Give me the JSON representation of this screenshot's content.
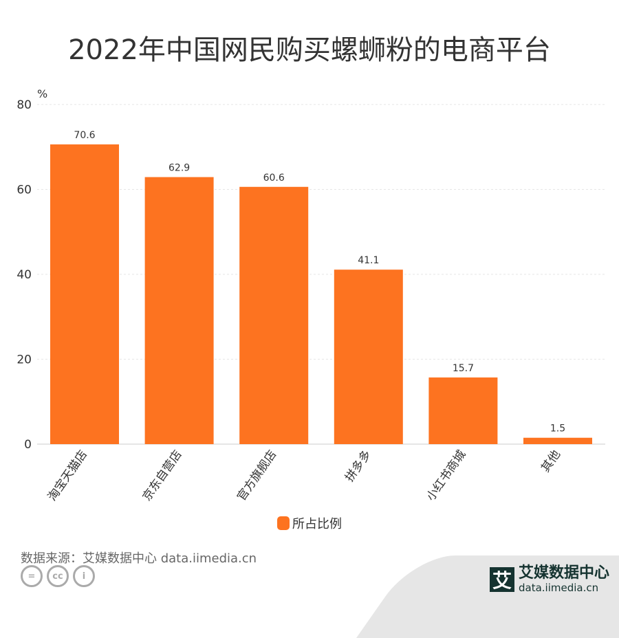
{
  "title": "2022年中国网民购买螺蛳粉的电商平台",
  "chart_data": {
    "type": "bar",
    "title": "2022年中国网民购买螺蛳粉的电商平台",
    "ylabel": "%",
    "ylim": [
      0,
      80
    ],
    "yticks": [
      0,
      20,
      40,
      60,
      80
    ],
    "grid": true,
    "categories": [
      "淘宝天猫店",
      "京东自营店",
      "官方旗舰店",
      "拼多多",
      "小红书商城",
      "其他"
    ],
    "series": [
      {
        "name": "所占比例",
        "values": [
          70.6,
          62.9,
          60.6,
          41.1,
          15.7,
          1.5
        ],
        "color": "#fd7320"
      }
    ],
    "legend": "bottom"
  },
  "source": "数据来源：艾媒数据中心 data.iimedia.cn",
  "brand": {
    "name": "艾媒数据中心",
    "url": "data.iimedia.cn",
    "logo": "艾"
  },
  "license": [
    "=",
    "cc",
    "i"
  ]
}
